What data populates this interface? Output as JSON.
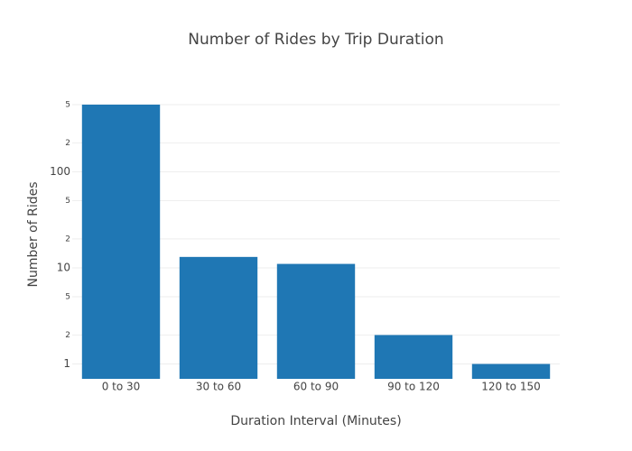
{
  "chart_data": {
    "type": "bar",
    "title": "Number of Rides by Trip Duration",
    "x_label": "Duration Interval (Minutes)",
    "y_label": "Number of Rides",
    "categories": [
      "0 to 30",
      "30 to 60",
      "60 to 90",
      "90 to 120",
      "120 to 150"
    ],
    "values": [
      500,
      13,
      11,
      2,
      1
    ],
    "color": "#1f77b4",
    "log_scale": true,
    "ylim": [
      0.7,
      500
    ],
    "yticks": [
      1,
      2,
      5,
      10,
      {
        "value": 20,
        "label": "2"
      },
      {
        "value": 50,
        "label": "5"
      },
      100,
      {
        "value": 200,
        "label": "2"
      },
      {
        "value": 500,
        "label": "5"
      }
    ],
    "grid": true
  }
}
